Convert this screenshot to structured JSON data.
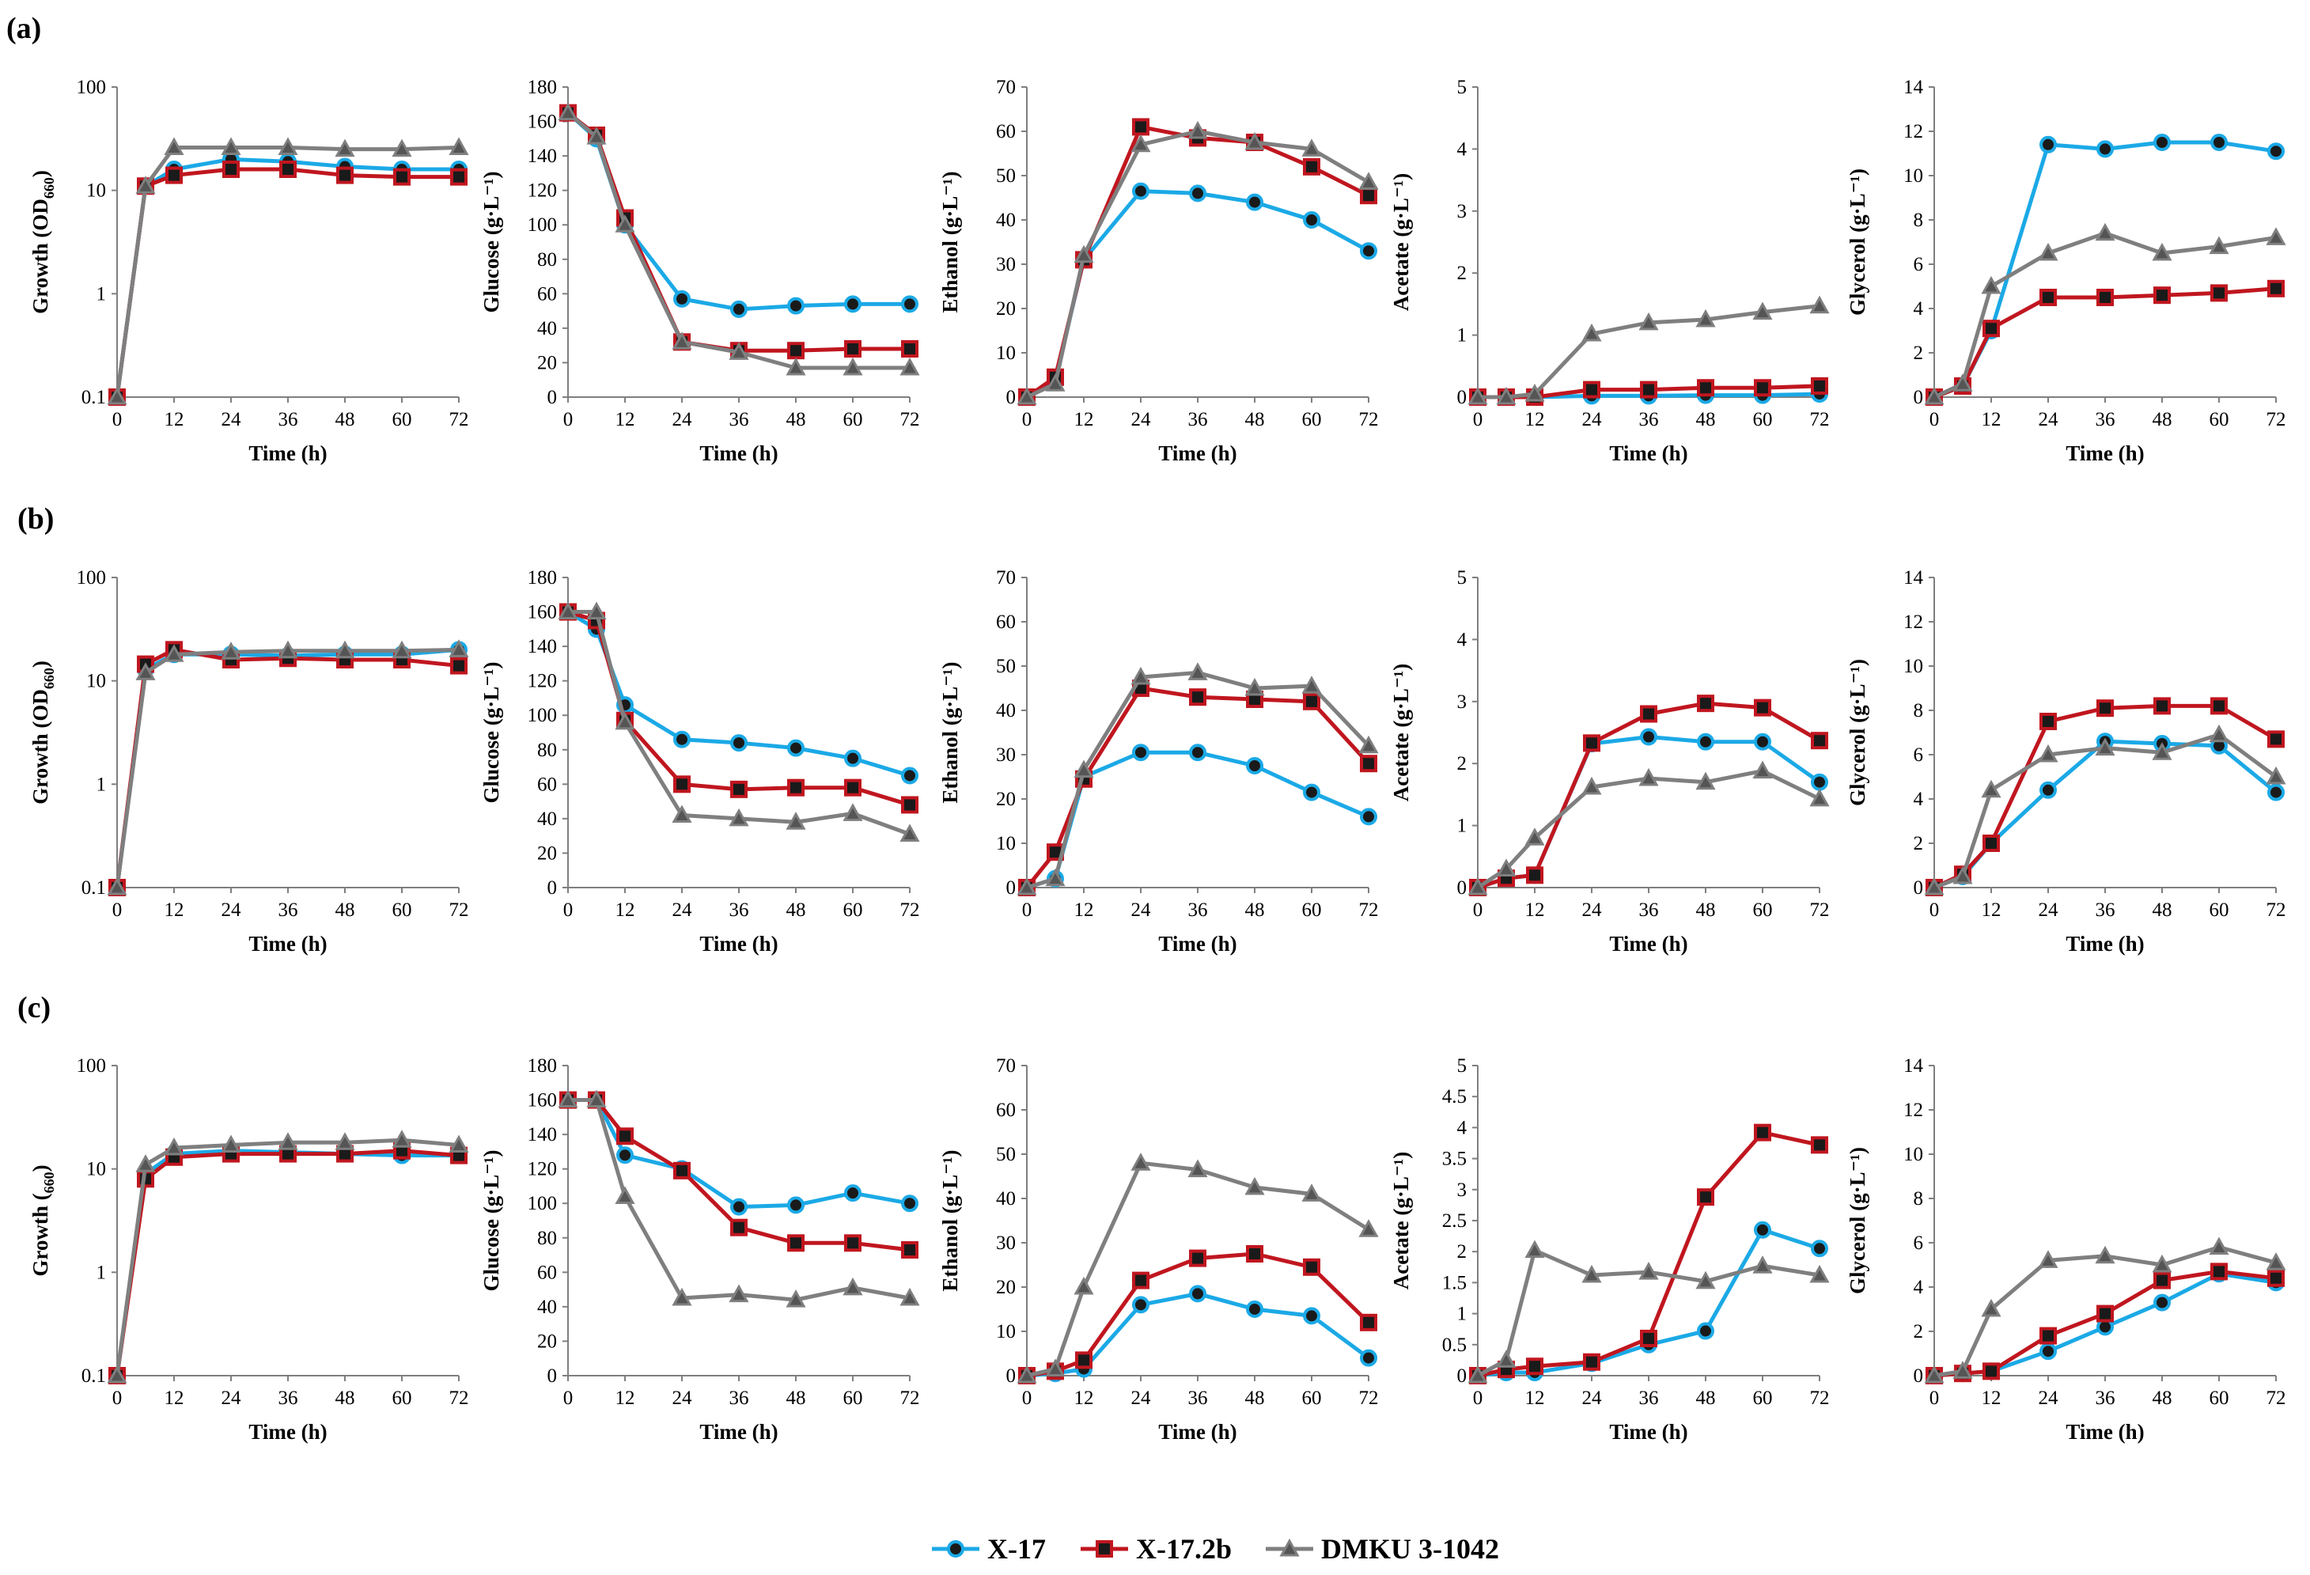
{
  "figure": {
    "legend": [
      {
        "name": "X-17",
        "color": "#1ba9e6",
        "marker": "circle"
      },
      {
        "name": "X-17.2b",
        "color": "#c0161f",
        "marker": "square"
      },
      {
        "name": "DMKU 3-1042",
        "color": "#7f7f7f",
        "marker": "triangle"
      }
    ]
  },
  "chart_data": [
    {
      "type": "line",
      "row": "(a)",
      "ylabel": "Growth (OD660)",
      "ylabel_parts": [
        "Growth (OD",
        "660",
        ")"
      ],
      "xlabel": "Time (h)",
      "yscale": "log",
      "ylim": [
        0.1,
        100
      ],
      "yticks": [
        0.1,
        1,
        10,
        100
      ],
      "ytick_labels": [
        "0.1",
        "1",
        "10",
        "100"
      ],
      "xticks": [
        0,
        12,
        24,
        36,
        48,
        60,
        72
      ],
      "x": [
        0,
        6,
        12,
        24,
        36,
        48,
        60,
        72
      ],
      "series": [
        {
          "name": "X-17",
          "values": [
            0.1,
            11,
            16,
            20,
            19,
            17,
            16,
            16
          ]
        },
        {
          "name": "X-17.2b",
          "values": [
            0.1,
            11,
            14,
            16,
            16,
            14,
            13.5,
            13.5
          ]
        },
        {
          "name": "DMKU 3-1042",
          "values": [
            0.1,
            11,
            26,
            26,
            26,
            25,
            25,
            26
          ]
        }
      ]
    },
    {
      "type": "line",
      "row": "(a)",
      "ylabel": "Glucose (g·L⁻¹)",
      "xlabel": "Time (h)",
      "yscale": "linear",
      "ylim": [
        0,
        180
      ],
      "yticks": [
        0,
        20,
        40,
        60,
        80,
        100,
        120,
        140,
        160,
        180
      ],
      "xticks": [
        0,
        12,
        24,
        36,
        48,
        60,
        72
      ],
      "x": [
        0,
        6,
        12,
        24,
        36,
        48,
        60,
        72
      ],
      "series": [
        {
          "name": "X-17",
          "values": [
            165,
            150,
            100,
            57,
            51,
            53,
            54,
            54
          ]
        },
        {
          "name": "X-17.2b",
          "values": [
            165,
            152,
            104,
            32,
            27,
            27,
            28,
            28
          ]
        },
        {
          "name": "DMKU 3-1042",
          "values": [
            165,
            151,
            100,
            32,
            26,
            17,
            17,
            17
          ]
        }
      ]
    },
    {
      "type": "line",
      "row": "(a)",
      "ylabel": "Ethanol (g·L⁻¹)",
      "xlabel": "Time (h)",
      "yscale": "linear",
      "ylim": [
        0,
        70
      ],
      "yticks": [
        0,
        10,
        20,
        30,
        40,
        50,
        60,
        70
      ],
      "xticks": [
        0,
        12,
        24,
        36,
        48,
        60,
        72
      ],
      "x": [
        0,
        6,
        12,
        24,
        36,
        48,
        60,
        72
      ],
      "series": [
        {
          "name": "X-17",
          "values": [
            0,
            4,
            31,
            46.5,
            46,
            44,
            40,
            33
          ]
        },
        {
          "name": "X-17.2b",
          "values": [
            0,
            4.5,
            31,
            61,
            58.5,
            57.5,
            52,
            45.5
          ]
        },
        {
          "name": "DMKU 3-1042",
          "values": [
            0,
            3,
            32,
            57,
            60,
            57.5,
            56,
            48.5
          ]
        }
      ]
    },
    {
      "type": "line",
      "row": "(a)",
      "ylabel": "Acetate (g·L⁻¹)",
      "xlabel": "Time (h)",
      "yscale": "linear",
      "ylim": [
        0,
        5
      ],
      "yticks": [
        0,
        1,
        2,
        3,
        4,
        5
      ],
      "xticks": [
        0,
        12,
        24,
        36,
        48,
        60,
        72
      ],
      "x": [
        0,
        6,
        12,
        24,
        36,
        48,
        60,
        72
      ],
      "series": [
        {
          "name": "X-17",
          "values": [
            0,
            0,
            0,
            0.02,
            0.02,
            0.03,
            0.03,
            0.05
          ]
        },
        {
          "name": "X-17.2b",
          "values": [
            0,
            0,
            0,
            0.12,
            0.12,
            0.15,
            0.15,
            0.18
          ]
        },
        {
          "name": "DMKU 3-1042",
          "values": [
            0,
            0,
            0.05,
            1.02,
            1.2,
            1.25,
            1.37,
            1.47
          ]
        }
      ]
    },
    {
      "type": "line",
      "row": "(a)",
      "ylabel": "Glycerol (g·L⁻¹)",
      "xlabel": "Time (h)",
      "yscale": "linear",
      "ylim": [
        0,
        14
      ],
      "yticks": [
        0,
        2,
        4,
        6,
        8,
        10,
        12,
        14
      ],
      "xticks": [
        0,
        12,
        24,
        36,
        48,
        60,
        72
      ],
      "x": [
        0,
        6,
        12,
        24,
        36,
        48,
        60,
        72
      ],
      "series": [
        {
          "name": "X-17",
          "values": [
            0,
            0.5,
            3,
            11.4,
            11.2,
            11.5,
            11.5,
            11.1
          ]
        },
        {
          "name": "X-17.2b",
          "values": [
            0,
            0.5,
            3.1,
            4.5,
            4.5,
            4.6,
            4.7,
            4.9
          ]
        },
        {
          "name": "DMKU 3-1042",
          "values": [
            0,
            0.6,
            5,
            6.5,
            7.4,
            6.5,
            6.8,
            7.2
          ]
        }
      ]
    },
    {
      "type": "line",
      "row": "(b)",
      "ylabel": "Growth (OD660)",
      "ylabel_parts": [
        "Growth (OD",
        "660",
        ")"
      ],
      "xlabel": "Time (h)",
      "yscale": "log",
      "ylim": [
        0.1,
        100
      ],
      "yticks": [
        0.1,
        1,
        10,
        100
      ],
      "ytick_labels": [
        "0.1",
        "1",
        "10",
        "100"
      ],
      "xticks": [
        0,
        12,
        24,
        36,
        48,
        60,
        72
      ],
      "x": [
        0,
        6,
        12,
        24,
        36,
        48,
        60,
        72
      ],
      "series": [
        {
          "name": "X-17",
          "values": [
            0.1,
            13,
            18,
            18,
            17.5,
            18,
            18,
            20
          ]
        },
        {
          "name": "X-17.2b",
          "values": [
            0.1,
            14.5,
            20,
            16,
            16.5,
            16,
            16,
            14
          ]
        },
        {
          "name": "DMKU 3-1042",
          "values": [
            0.1,
            12,
            18,
            19,
            19.5,
            19.5,
            19.5,
            20
          ]
        }
      ]
    },
    {
      "type": "line",
      "row": "(b)",
      "ylabel": "Glucose (g·L⁻¹)",
      "xlabel": "Time (h)",
      "yscale": "linear",
      "ylim": [
        0,
        180
      ],
      "yticks": [
        0,
        20,
        40,
        60,
        80,
        100,
        120,
        140,
        160,
        180
      ],
      "xticks": [
        0,
        12,
        24,
        36,
        48,
        60,
        72
      ],
      "x": [
        0,
        6,
        12,
        24,
        36,
        48,
        60,
        72
      ],
      "series": [
        {
          "name": "X-17",
          "values": [
            160,
            150,
            106,
            86,
            84,
            81,
            75,
            65
          ]
        },
        {
          "name": "X-17.2b",
          "values": [
            160,
            155,
            97,
            60,
            57,
            58,
            58,
            48
          ]
        },
        {
          "name": "DMKU 3-1042",
          "values": [
            160,
            160,
            96,
            42,
            40,
            38,
            43,
            31
          ]
        }
      ]
    },
    {
      "type": "line",
      "row": "(b)",
      "ylabel": "Ethanol (g·L⁻¹)",
      "xlabel": "Time (h)",
      "yscale": "linear",
      "ylim": [
        0,
        70
      ],
      "yticks": [
        0,
        10,
        20,
        30,
        40,
        50,
        60,
        70
      ],
      "xticks": [
        0,
        12,
        24,
        36,
        48,
        60,
        72
      ],
      "x": [
        0,
        6,
        12,
        24,
        36,
        48,
        60,
        72
      ],
      "series": [
        {
          "name": "X-17",
          "values": [
            0,
            2,
            25,
            30.5,
            30.5,
            27.5,
            21.5,
            16
          ]
        },
        {
          "name": "X-17.2b",
          "values": [
            0,
            8,
            24.5,
            45,
            43,
            42.5,
            42,
            28
          ]
        },
        {
          "name": "DMKU 3-1042",
          "values": [
            0,
            2,
            26.5,
            47.5,
            48.5,
            45,
            45.5,
            32
          ]
        }
      ]
    },
    {
      "type": "line",
      "row": "(b)",
      "ylabel": "Acetate (g·L⁻¹)",
      "xlabel": "Time (h)",
      "yscale": "linear",
      "ylim": [
        0,
        5
      ],
      "yticks": [
        0,
        1,
        2,
        3,
        4,
        5
      ],
      "xticks": [
        0,
        12,
        24,
        36,
        48,
        60,
        72
      ],
      "x": [
        0,
        6,
        12,
        24,
        36,
        48,
        60,
        72
      ],
      "series": [
        {
          "name": "X-17",
          "values": [
            0,
            0.15,
            0.2,
            2.32,
            2.43,
            2.35,
            2.35,
            1.7
          ]
        },
        {
          "name": "X-17.2b",
          "values": [
            0,
            0.15,
            0.2,
            2.33,
            2.8,
            2.97,
            2.9,
            2.37
          ]
        },
        {
          "name": "DMKU 3-1042",
          "values": [
            0,
            0.3,
            0.8,
            1.62,
            1.76,
            1.7,
            1.88,
            1.43
          ]
        }
      ]
    },
    {
      "type": "line",
      "row": "(b)",
      "ylabel": "Glycerol (g·L⁻¹)",
      "xlabel": "Time (h)",
      "yscale": "linear",
      "ylim": [
        0,
        14
      ],
      "yticks": [
        0,
        2,
        4,
        6,
        8,
        10,
        12,
        14
      ],
      "xticks": [
        0,
        12,
        24,
        36,
        48,
        60,
        72
      ],
      "x": [
        0,
        6,
        12,
        24,
        36,
        48,
        60,
        72
      ],
      "series": [
        {
          "name": "X-17",
          "values": [
            0,
            0.5,
            2,
            4.4,
            6.6,
            6.5,
            6.4,
            4.3
          ]
        },
        {
          "name": "X-17.2b",
          "values": [
            0,
            0.6,
            2,
            7.5,
            8.1,
            8.2,
            8.2,
            6.7
          ]
        },
        {
          "name": "DMKU 3-1042",
          "values": [
            0,
            0.5,
            4.4,
            6,
            6.3,
            6.1,
            6.9,
            5
          ]
        }
      ]
    },
    {
      "type": "line",
      "row": "(c)",
      "ylabel": "Growth (660)",
      "ylabel_parts": [
        "Growth (",
        "660",
        ")"
      ],
      "xlabel": "Time (h)",
      "yscale": "log",
      "ylim": [
        0.1,
        100
      ],
      "yticks": [
        0.1,
        1,
        10,
        100
      ],
      "ytick_labels": [
        "0.1",
        "1",
        "10",
        "100"
      ],
      "xticks": [
        0,
        12,
        24,
        36,
        48,
        60,
        72
      ],
      "x": [
        0,
        6,
        12,
        24,
        36,
        48,
        60,
        72
      ],
      "series": [
        {
          "name": "X-17",
          "values": [
            0.1,
            9,
            14,
            15,
            14.5,
            14,
            13.5,
            13.5
          ]
        },
        {
          "name": "X-17.2b",
          "values": [
            0.1,
            8,
            13,
            14,
            14,
            14,
            15,
            13.5
          ]
        },
        {
          "name": "DMKU 3-1042",
          "values": [
            0.1,
            11,
            16,
            17,
            18,
            18,
            19,
            17
          ]
        }
      ]
    },
    {
      "type": "line",
      "row": "(c)",
      "ylabel": "Glucose (g·L⁻¹)",
      "xlabel": "Time (h)",
      "yscale": "linear",
      "ylim": [
        0,
        180
      ],
      "yticks": [
        0,
        20,
        40,
        60,
        80,
        100,
        120,
        140,
        160,
        180
      ],
      "xticks": [
        0,
        12,
        24,
        36,
        48,
        60,
        72
      ],
      "x": [
        0,
        6,
        12,
        24,
        36,
        48,
        60,
        72
      ],
      "series": [
        {
          "name": "X-17",
          "values": [
            160,
            160,
            128,
            120,
            98,
            99,
            106,
            100
          ]
        },
        {
          "name": "X-17.2b",
          "values": [
            160,
            160,
            139,
            119,
            86,
            77,
            77,
            73
          ]
        },
        {
          "name": "DMKU 3-1042",
          "values": [
            160,
            160,
            104,
            45,
            47,
            44,
            51,
            45
          ]
        }
      ]
    },
    {
      "type": "line",
      "row": "(c)",
      "ylabel": "Ethanol (g·L⁻¹)",
      "xlabel": "Time (h)",
      "yscale": "linear",
      "ylim": [
        0,
        70
      ],
      "yticks": [
        0,
        10,
        20,
        30,
        40,
        50,
        60,
        70
      ],
      "xticks": [
        0,
        12,
        24,
        36,
        48,
        60,
        72
      ],
      "x": [
        0,
        6,
        12,
        24,
        36,
        48,
        60,
        72
      ],
      "series": [
        {
          "name": "X-17",
          "values": [
            0,
            0.5,
            1.5,
            16,
            18.5,
            15,
            13.5,
            4
          ]
        },
        {
          "name": "X-17.2b",
          "values": [
            0,
            1,
            3.5,
            21.5,
            26.5,
            27.5,
            24.5,
            12
          ]
        },
        {
          "name": "DMKU 3-1042",
          "values": [
            0,
            1.5,
            20,
            48,
            46.5,
            42.5,
            41,
            33
          ]
        }
      ]
    },
    {
      "type": "line",
      "row": "(c)",
      "ylabel": "Acetate (g·L⁻¹)",
      "xlabel": "Time (h)",
      "yscale": "linear",
      "ylim": [
        0,
        5
      ],
      "yticks": [
        0,
        0.5,
        1,
        1.5,
        2,
        2.5,
        3,
        3.5,
        4,
        4.5,
        5
      ],
      "ytick_labels": [
        "0",
        "0.5",
        "1",
        "1.5",
        "2",
        "2.5",
        "3",
        "3.5",
        "4",
        "4.5",
        "5"
      ],
      "xticks": [
        0,
        12,
        24,
        36,
        48,
        60,
        72
      ],
      "x": [
        0,
        6,
        12,
        24,
        36,
        48,
        60,
        72
      ],
      "series": [
        {
          "name": "X-17",
          "values": [
            0,
            0.05,
            0.05,
            0.2,
            0.5,
            0.72,
            2.35,
            2.05
          ]
        },
        {
          "name": "X-17.2b",
          "values": [
            0,
            0.1,
            0.15,
            0.22,
            0.6,
            2.88,
            3.92,
            3.72
          ]
        },
        {
          "name": "DMKU 3-1042",
          "values": [
            0,
            0.25,
            2.02,
            1.62,
            1.67,
            1.52,
            1.77,
            1.62
          ]
        }
      ]
    },
    {
      "type": "line",
      "row": "(c)",
      "ylabel": "Glycerol (g·L⁻¹)",
      "xlabel": "Time (h)",
      "yscale": "linear",
      "ylim": [
        0,
        14
      ],
      "yticks": [
        0,
        2,
        4,
        6,
        8,
        10,
        12,
        14
      ],
      "xticks": [
        0,
        12,
        24,
        36,
        48,
        60,
        72
      ],
      "x": [
        0,
        6,
        12,
        24,
        36,
        48,
        60,
        72
      ],
      "series": [
        {
          "name": "X-17",
          "values": [
            0,
            0.1,
            0.2,
            1.1,
            2.2,
            3.3,
            4.6,
            4.2
          ]
        },
        {
          "name": "X-17.2b",
          "values": [
            0,
            0.1,
            0.2,
            1.8,
            2.8,
            4.3,
            4.7,
            4.4
          ]
        },
        {
          "name": "DMKU 3-1042",
          "values": [
            0,
            0.2,
            3,
            5.2,
            5.4,
            5,
            5.8,
            5.1
          ]
        }
      ]
    }
  ],
  "panel_labels": [
    "(a)",
    "(b)",
    "(c)"
  ]
}
